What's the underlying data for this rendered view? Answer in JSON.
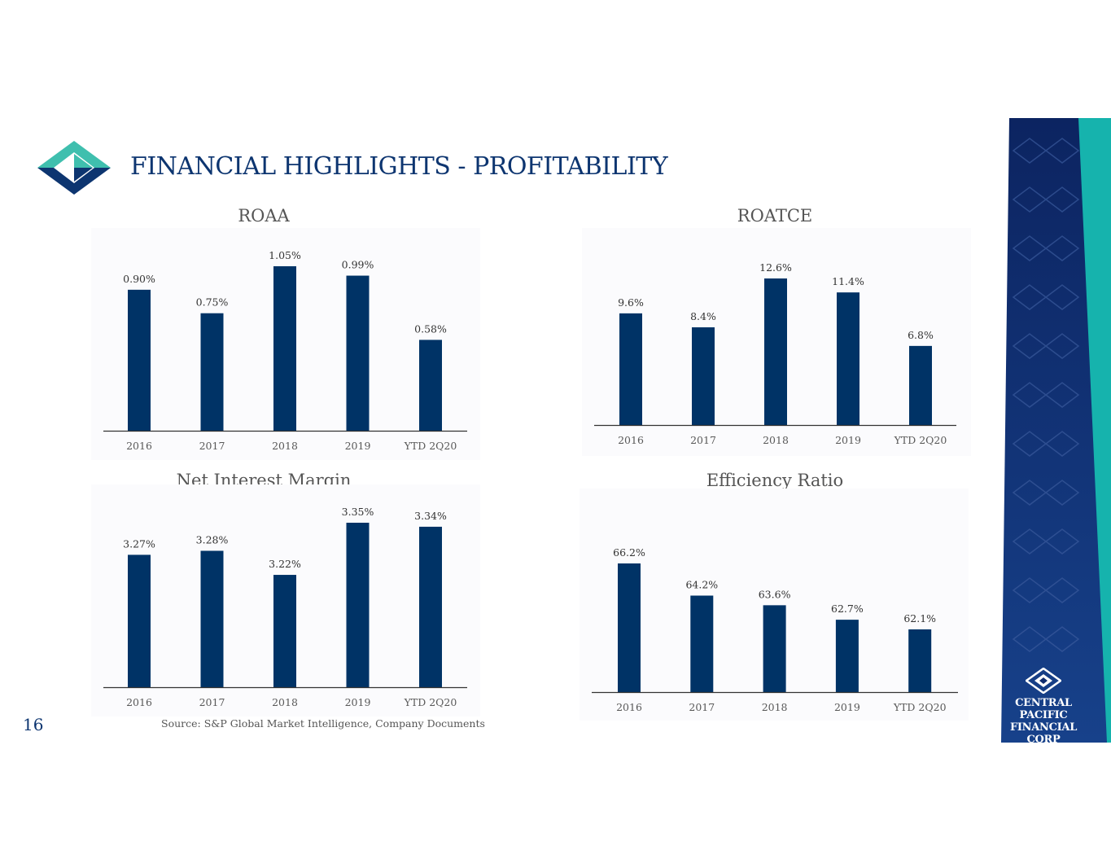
{
  "header": {
    "title": "FINANCIAL HIGHLIGHTS - PROFITABILITY"
  },
  "colors": {
    "bar": "#003366",
    "title": "#0d3570",
    "teal": "#3fbfae",
    "navy_band": "#0f2c6e",
    "accent_teal": "#16b3ad"
  },
  "footer": {
    "page_number": "16",
    "source": "Source: S&P Global Market Intelligence, Company Documents"
  },
  "brand": {
    "line1": "CENTRAL PACIFIC",
    "line2": "FINANCIAL CORP"
  },
  "chart_data": [
    {
      "id": "roaa",
      "type": "bar",
      "title": "ROAA",
      "categories": [
        "2016",
        "2017",
        "2018",
        "2019",
        "YTD 2Q20"
      ],
      "values": [
        0.9,
        0.75,
        1.05,
        0.99,
        0.58
      ],
      "labels": [
        "0.90%",
        "0.75%",
        "1.05%",
        "0.99%",
        "0.58%"
      ],
      "ylim": [
        0,
        1.05
      ],
      "grid": false,
      "legend": "none"
    },
    {
      "id": "roatce",
      "type": "bar",
      "title": "ROATCE",
      "categories": [
        "2016",
        "2017",
        "2018",
        "2019",
        "YTD 2Q20"
      ],
      "values": [
        9.6,
        8.4,
        12.6,
        11.4,
        6.8
      ],
      "labels": [
        "9.6%",
        "8.4%",
        "12.6%",
        "11.4%",
        "6.8%"
      ],
      "ylim": [
        0,
        12.6
      ],
      "grid": false,
      "legend": "none"
    },
    {
      "id": "nim",
      "type": "bar",
      "title": "Net Interest Margin",
      "categories": [
        "2016",
        "2017",
        "2018",
        "2019",
        "YTD 2Q20"
      ],
      "values": [
        3.27,
        3.28,
        3.22,
        3.35,
        3.34
      ],
      "labels": [
        "3.27%",
        "3.28%",
        "3.22%",
        "3.35%",
        "3.34%"
      ],
      "ylim": [
        2.94,
        3.35
      ],
      "grid": false,
      "legend": "none"
    },
    {
      "id": "efficiency",
      "type": "bar",
      "title": "Efficiency Ratio",
      "categories": [
        "2016",
        "2017",
        "2018",
        "2019",
        "YTD 2Q20"
      ],
      "values": [
        66.2,
        64.2,
        63.6,
        62.7,
        62.1
      ],
      "labels": [
        "66.2%",
        "64.2%",
        "63.6%",
        "62.7%",
        "62.1%"
      ],
      "ylim": [
        58.2,
        66.2
      ],
      "grid": false,
      "legend": "none"
    }
  ]
}
